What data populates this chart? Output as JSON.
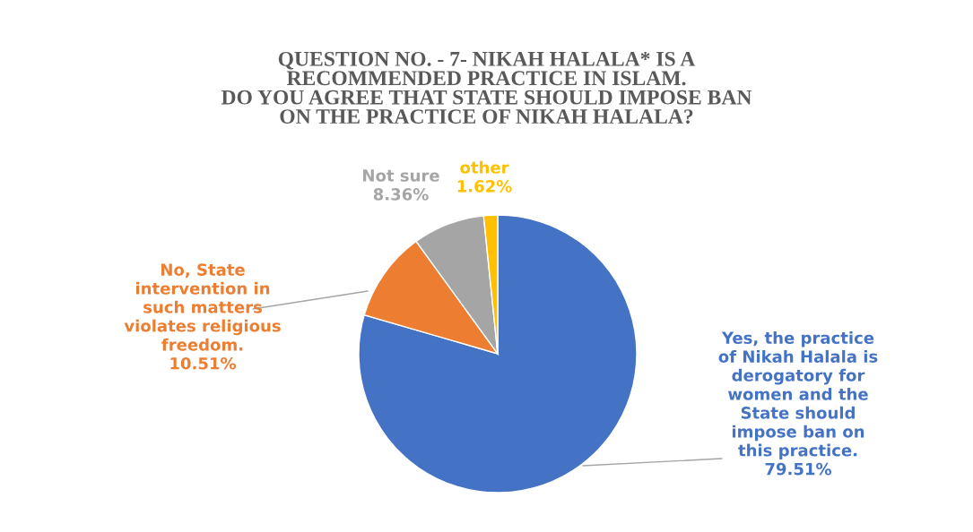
{
  "chart_data": {
    "type": "pie",
    "title": "QUESTION NO. - 7- NIKAH HALALA* IS A\nRECOMMENDED PRACTICE IN ISLAM.\nDO YOU AGREE THAT STATE SHOULD IMPOSE BAN\nON THE PRACTICE OF NIKAH HALALA?",
    "categories": [
      "Yes, the practice\nof Nikah Halala is\nderogatory for\nwomen and the\nState should\nimpose ban on\nthis practice.",
      "No, State\nintervention in\nsuch matters\nviolates religious\nfreedom.",
      "Not sure",
      "other"
    ],
    "values": [
      79.51,
      10.51,
      8.36,
      1.62
    ],
    "value_labels": [
      "79.51%",
      "10.51%",
      "8.36%",
      "1.62%"
    ],
    "colors": [
      "#4472c4",
      "#ed7d31",
      "#a5a5a5",
      "#ffc000"
    ],
    "legend": false
  }
}
